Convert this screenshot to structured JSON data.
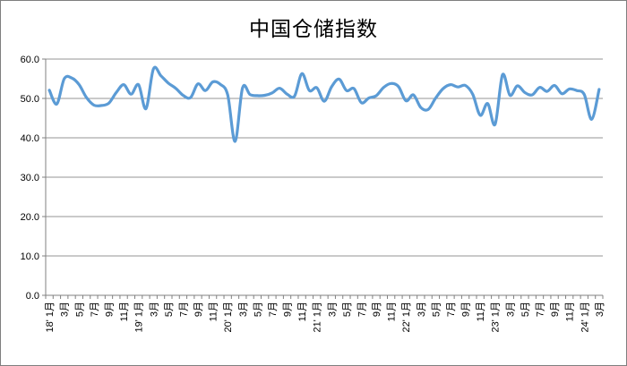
{
  "title": "中国仓储指数",
  "colors": {
    "line": "#5B9BD5",
    "grid": "#969696",
    "axis": "#808080",
    "tick": "#808080",
    "text": "#000000",
    "frame_border": "#7F7F7F",
    "background": "#FFFFFF"
  },
  "chart_data": {
    "type": "line",
    "title": "中国仓储指数",
    "xlabel": "",
    "ylabel": "",
    "x_start": "2018-01",
    "x_end": "2024-03",
    "x_label_every": 2,
    "x_tick_labels": [
      "18' 1月",
      "3月",
      "5月",
      "7月",
      "9月",
      "11月",
      "19' 1月",
      "3月",
      "5月",
      "7月",
      "9月",
      "11月",
      "20' 1月",
      "3月",
      "5月",
      "7月",
      "9月",
      "11月",
      "21' 1月",
      "3月",
      "5月",
      "7月",
      "9月",
      "11月",
      "22' 1月",
      "3月",
      "5月",
      "7月",
      "9月",
      "11月",
      "23' 1月",
      "3月",
      "5月",
      "7月",
      "9月",
      "11月",
      "24' 1月",
      "3月"
    ],
    "y_ticks": [
      "0.0",
      "10.0",
      "20.0",
      "30.0",
      "40.0",
      "50.0",
      "60.0"
    ],
    "ylim": [
      0,
      60
    ],
    "grid": "horizontal",
    "legend": "none",
    "line_style": "smooth",
    "series": [
      {
        "name": "中国仓储指数",
        "start_month": "2018-01",
        "values": [
          52.1,
          48.6,
          55.0,
          55.2,
          53.5,
          50.2,
          48.3,
          48.2,
          48.8,
          51.5,
          53.5,
          51.1,
          53.5,
          47.4,
          57.5,
          55.8,
          53.9,
          52.6,
          50.8,
          50.2,
          53.7,
          52.0,
          54.2,
          53.6,
          50.9,
          39.1,
          52.7,
          51.0,
          50.7,
          50.8,
          51.4,
          52.6,
          51.1,
          50.6,
          56.3,
          52.0,
          52.7,
          49.3,
          53.0,
          54.9,
          52.0,
          52.5,
          48.9,
          50.1,
          50.7,
          52.8,
          53.8,
          53.0,
          49.4,
          50.9,
          47.7,
          47.2,
          50.1,
          52.5,
          53.5,
          52.9,
          53.3,
          51.0,
          45.7,
          48.7,
          43.4,
          56.0,
          50.8,
          53.2,
          51.5,
          50.9,
          52.8,
          51.8,
          53.3,
          51.2,
          52.4,
          52.0,
          51.0,
          44.7,
          52.3
        ]
      }
    ]
  }
}
